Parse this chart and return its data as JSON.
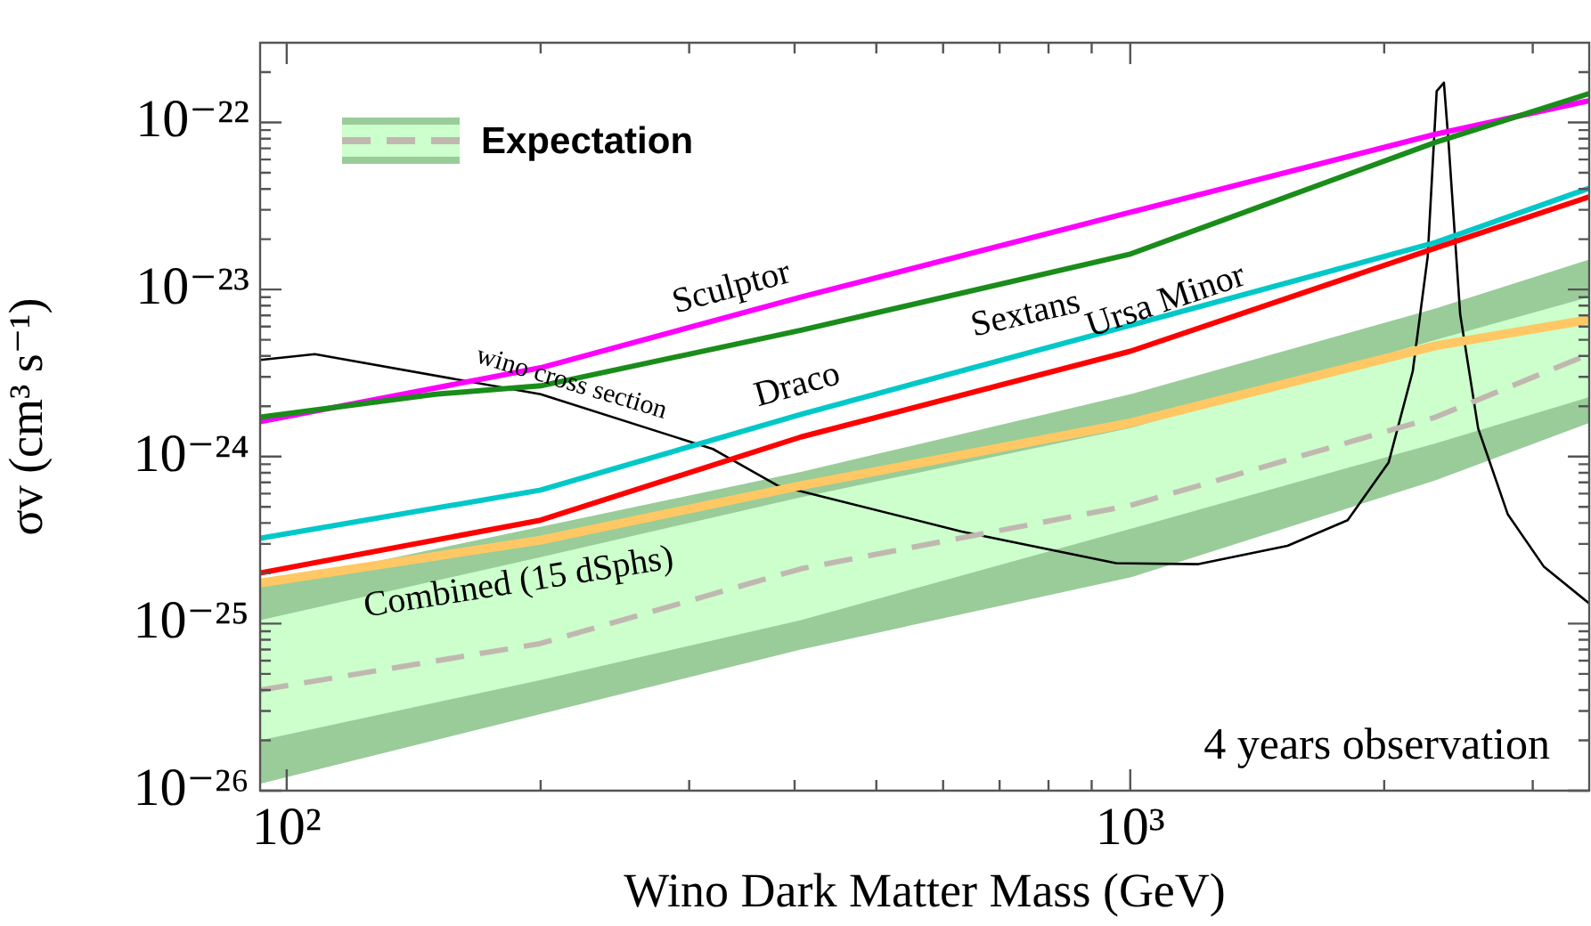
{
  "chart_data": {
    "type": "line",
    "xlabel": "Wino Dark Matter Mass (GeV)",
    "ylabel": "σv (cm³ s⁻¹)",
    "log": "xy",
    "grid": false,
    "marker": "none",
    "legend": "top left",
    "xlim": [
      93,
      3500
    ],
    "ylim": [
      1e-26,
      3e-22
    ],
    "xticks": [
      {
        "value": 100,
        "label": "10²"
      },
      {
        "value": 200,
        "label": null
      },
      {
        "value": 300,
        "label": null
      },
      {
        "value": 400,
        "label": null
      },
      {
        "value": 500,
        "label": null
      },
      {
        "value": 600,
        "label": null
      },
      {
        "value": 700,
        "label": null
      },
      {
        "value": 800,
        "label": null
      },
      {
        "value": 900,
        "label": null
      },
      {
        "value": 1000,
        "label": "10³"
      },
      {
        "value": 2000,
        "label": null
      },
      {
        "value": 3000,
        "label": null
      }
    ],
    "yticks": [
      {
        "value": 1e-26,
        "label": "10⁻²⁶"
      },
      {
        "value": 2e-26,
        "label": null
      },
      {
        "value": 3e-26,
        "label": null
      },
      {
        "value": 4e-26,
        "label": null
      },
      {
        "value": 5e-26,
        "label": null
      },
      {
        "value": 6e-26,
        "label": null
      },
      {
        "value": 7e-26,
        "label": null
      },
      {
        "value": 8e-26,
        "label": null
      },
      {
        "value": 9e-26,
        "label": null
      },
      {
        "value": 1e-25,
        "label": "10⁻²⁵"
      },
      {
        "value": 2e-25,
        "label": null
      },
      {
        "value": 3e-25,
        "label": null
      },
      {
        "value": 4e-25,
        "label": null
      },
      {
        "value": 5e-25,
        "label": null
      },
      {
        "value": 6e-25,
        "label": null
      },
      {
        "value": 7e-25,
        "label": null
      },
      {
        "value": 8e-25,
        "label": null
      },
      {
        "value": 9e-25,
        "label": null
      },
      {
        "value": 1e-24,
        "label": "10⁻²⁴"
      },
      {
        "value": 2e-24,
        "label": null
      },
      {
        "value": 3e-24,
        "label": null
      },
      {
        "value": 4e-24,
        "label": null
      },
      {
        "value": 5e-24,
        "label": null
      },
      {
        "value": 6e-24,
        "label": null
      },
      {
        "value": 7e-24,
        "label": null
      },
      {
        "value": 8e-24,
        "label": null
      },
      {
        "value": 9e-24,
        "label": null
      },
      {
        "value": 1e-23,
        "label": "10⁻²³"
      },
      {
        "value": 2e-23,
        "label": null
      },
      {
        "value": 3e-23,
        "label": null
      },
      {
        "value": 4e-23,
        "label": null
      },
      {
        "value": 5e-23,
        "label": null
      },
      {
        "value": 6e-23,
        "label": null
      },
      {
        "value": 7e-23,
        "label": null
      },
      {
        "value": 8e-23,
        "label": null
      },
      {
        "value": 9e-23,
        "label": null
      },
      {
        "value": 1e-22,
        "label": "10⁻²²"
      },
      {
        "value": 2e-22,
        "label": null
      }
    ],
    "annotations": [
      "4 years observation"
    ],
    "series": [
      {
        "color": "#99cc99",
        "x": [
          93,
          407,
          1000,
          2300,
          3500
        ],
        "values": [
          null,
          null,
          null,
          null,
          null
        ],
        "lower": [
          1.1e-26,
          7e-26,
          1.89e-25,
          7.2e-25,
          1.59e-24
        ],
        "upper": [
          1.68e-25,
          8.1e-25,
          2.36e-24,
          7.7e-24,
          1.51e-23
        ]
      },
      {
        "name": "Expectation",
        "color": "#c0b8b0",
        "line_style": "dashed",
        "x": [
          93,
          200,
          407,
          1000,
          2300,
          3500
        ],
        "values": [
          4e-26,
          7.6e-26,
          2.13e-25,
          5.1e-25,
          1.72e-24,
          4.1e-24
        ],
        "lower": [
          2e-26,
          4.6e-26,
          1.05e-25,
          3.69e-25,
          1.2e-24,
          2.27e-24
        ],
        "upper": [
          1.05e-25,
          2.5e-25,
          5.7e-25,
          1.48e-24,
          4.99e-24,
          9e-24
        ]
      },
      {
        "name": "Combined (15 dSphs)",
        "color": "#ffc864",
        "x": [
          93,
          200,
          407,
          1000,
          2300,
          3500
        ],
        "values": [
          1.75e-25,
          3.16e-25,
          6.7e-25,
          1.59e-24,
          4.6e-24,
          6.6e-24
        ]
      },
      {
        "name": "Ursa Minor",
        "color": "#ff0000",
        "x": [
          93,
          200,
          407,
          1000,
          2300,
          3500
        ],
        "values": [
          2.01e-25,
          4.16e-25,
          1.31e-24,
          4.27e-24,
          1.77e-23,
          3.59e-23
        ]
      },
      {
        "name": "Draco",
        "color": "#00c8c8",
        "x": [
          93,
          200,
          407,
          1000,
          2300,
          3500
        ],
        "values": [
          3.24e-25,
          6.3e-25,
          1.79e-24,
          6.1e-24,
          1.91e-23,
          4.04e-23
        ]
      },
      {
        "name": "Sextans",
        "color": "#1a8c1a",
        "x": [
          93,
          150,
          200,
          407,
          1000,
          2300,
          3500
        ],
        "values": [
          1.72e-24,
          2.36e-24,
          2.65e-24,
          5.7e-24,
          1.63e-23,
          7.6e-23,
          1.49e-22
        ]
      },
      {
        "name": "Sculptor",
        "color": "#ff00ff",
        "x": [
          93,
          200,
          407,
          1000,
          2300,
          3500
        ],
        "values": [
          1.62e-24,
          3.4e-24,
          9e-24,
          2.9e-23,
          8.5e-23,
          1.35e-22
        ]
      },
      {
        "name": "wino cross section",
        "color": "#000000",
        "x": [
          93,
          108,
          200,
          320,
          382,
          407,
          631,
          962,
          1205,
          1536,
          1810,
          2024,
          2162,
          2252,
          2308,
          2354,
          2384,
          2461,
          2585,
          2803,
          3091,
          3500
        ],
        "values": [
          3.79e-24,
          4.1e-24,
          2.36e-24,
          1.11e-24,
          6.7e-25,
          6.2e-25,
          3.56e-25,
          2.3e-25,
          2.27e-25,
          2.92e-25,
          4.16e-25,
          9.2e-25,
          3.24e-24,
          1.57e-23,
          1.54e-22,
          1.73e-22,
          7.6e-23,
          7.1e-24,
          1.47e-24,
          4.5e-25,
          2.2e-25,
          1.32e-25
        ]
      }
    ]
  }
}
